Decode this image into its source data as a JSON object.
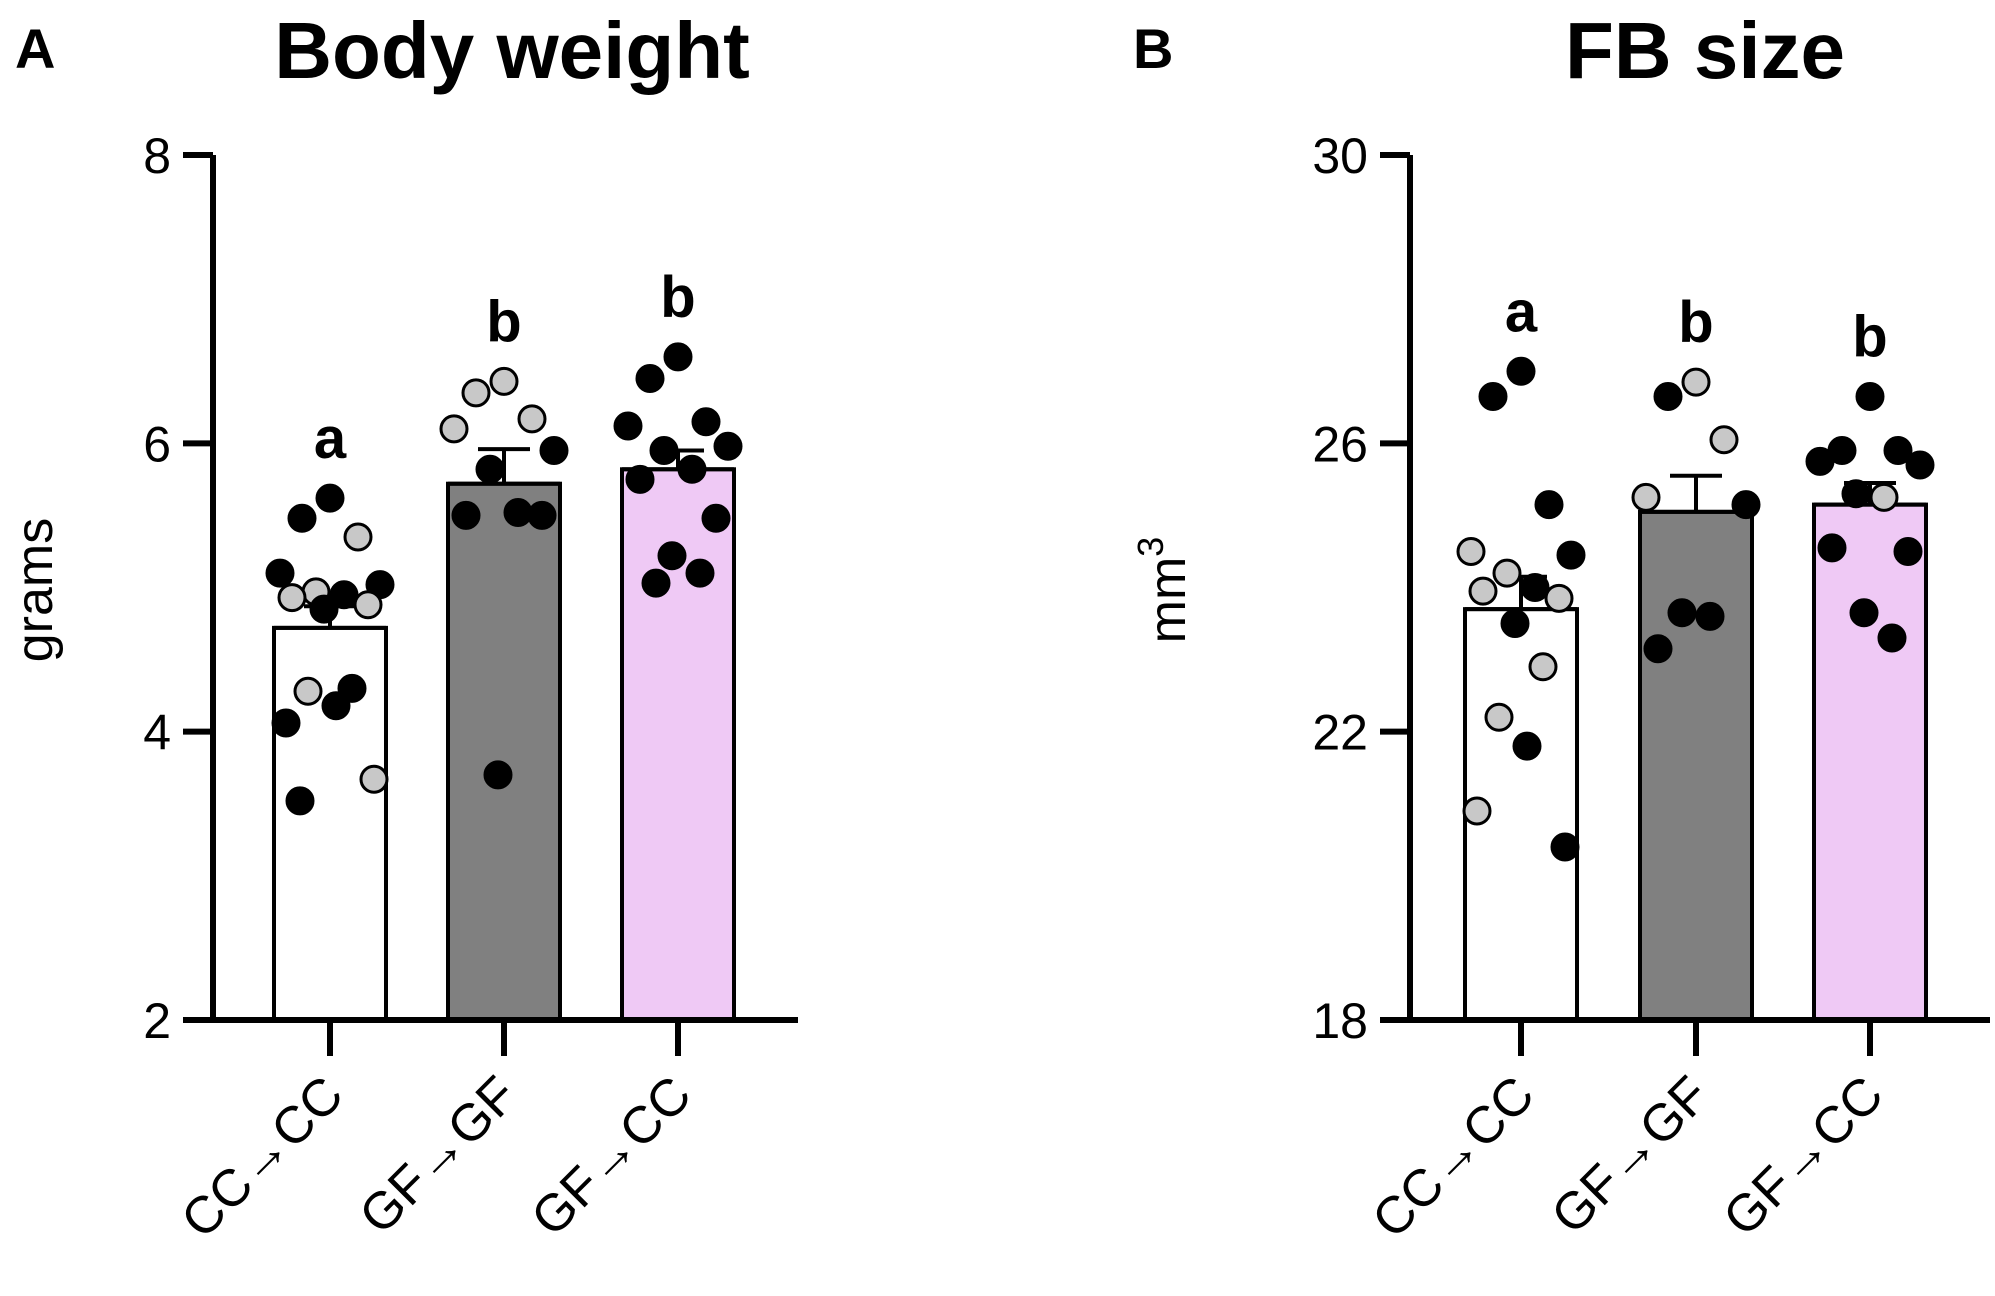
{
  "chart_data": [
    {
      "panel": "A",
      "type": "bar",
      "title": "Body weight",
      "ylabel": "grams",
      "xlabel": "",
      "ylim": [
        2,
        8
      ],
      "yticks": [
        2,
        4,
        6,
        8
      ],
      "categories": [
        "CC→CC",
        "GF→GF",
        "GF→CC"
      ],
      "bar_colors": [
        "#ffffff",
        "#808080",
        "#efc9f5"
      ],
      "means": [
        4.72,
        5.72,
        5.82
      ],
      "sem": [
        0.15,
        0.24,
        0.13
      ],
      "significance": [
        "a",
        "b",
        "b"
      ],
      "points": [
        [
          {
            "v": 5.62,
            "fill": "#000000"
          },
          {
            "v": 5.48,
            "fill": "#000000"
          },
          {
            "v": 5.35,
            "fill": "#c8c8c8"
          },
          {
            "v": 5.1,
            "fill": "#000000"
          },
          {
            "v": 5.02,
            "fill": "#000000"
          },
          {
            "v": 4.97,
            "fill": "#c8c8c8"
          },
          {
            "v": 4.95,
            "fill": "#000000"
          },
          {
            "v": 4.93,
            "fill": "#c8c8c8"
          },
          {
            "v": 4.88,
            "fill": "#c8c8c8"
          },
          {
            "v": 4.85,
            "fill": "#000000"
          },
          {
            "v": 4.3,
            "fill": "#000000"
          },
          {
            "v": 4.28,
            "fill": "#c8c8c8"
          },
          {
            "v": 4.18,
            "fill": "#000000"
          },
          {
            "v": 4.06,
            "fill": "#000000"
          },
          {
            "v": 3.67,
            "fill": "#c8c8c8"
          },
          {
            "v": 3.52,
            "fill": "#000000"
          }
        ],
        [
          {
            "v": 6.43,
            "fill": "#c8c8c8"
          },
          {
            "v": 6.35,
            "fill": "#c8c8c8"
          },
          {
            "v": 6.17,
            "fill": "#c8c8c8"
          },
          {
            "v": 6.1,
            "fill": "#c8c8c8"
          },
          {
            "v": 5.95,
            "fill": "#000000"
          },
          {
            "v": 5.82,
            "fill": "#000000"
          },
          {
            "v": 5.52,
            "fill": "#000000"
          },
          {
            "v": 5.5,
            "fill": "#000000"
          },
          {
            "v": 5.5,
            "fill": "#000000"
          },
          {
            "v": 3.7,
            "fill": "#000000"
          }
        ],
        [
          {
            "v": 6.6,
            "fill": "#000000"
          },
          {
            "v": 6.45,
            "fill": "#000000"
          },
          {
            "v": 6.15,
            "fill": "#000000"
          },
          {
            "v": 6.12,
            "fill": "#000000"
          },
          {
            "v": 5.98,
            "fill": "#000000"
          },
          {
            "v": 5.95,
            "fill": "#000000"
          },
          {
            "v": 5.82,
            "fill": "#000000"
          },
          {
            "v": 5.75,
            "fill": "#000000"
          },
          {
            "v": 5.48,
            "fill": "#000000"
          },
          {
            "v": 5.22,
            "fill": "#000000"
          },
          {
            "v": 5.1,
            "fill": "#000000"
          },
          {
            "v": 5.03,
            "fill": "#000000"
          }
        ]
      ]
    },
    {
      "panel": "B",
      "type": "bar",
      "title": "FB size",
      "ylabel": "mm",
      "ylabel_superscript": "3",
      "xlabel": "",
      "ylim": [
        18,
        30
      ],
      "yticks": [
        18,
        22,
        26,
        30
      ],
      "categories": [
        "CC→CC",
        "GF→GF",
        "GF→CC"
      ],
      "bar_colors": [
        "#ffffff",
        "#808080",
        "#efc9f5"
      ],
      "means": [
        23.7,
        25.05,
        25.15
      ],
      "sem": [
        0.45,
        0.5,
        0.3
      ],
      "significance": [
        "a",
        "b",
        "b"
      ],
      "points": [
        [
          {
            "v": 27.0,
            "fill": "#000000"
          },
          {
            "v": 26.65,
            "fill": "#000000"
          },
          {
            "v": 25.15,
            "fill": "#000000"
          },
          {
            "v": 24.5,
            "fill": "#c8c8c8"
          },
          {
            "v": 24.45,
            "fill": "#000000"
          },
          {
            "v": 24.2,
            "fill": "#c8c8c8"
          },
          {
            "v": 24.0,
            "fill": "#000000"
          },
          {
            "v": 23.95,
            "fill": "#c8c8c8"
          },
          {
            "v": 23.85,
            "fill": "#c8c8c8"
          },
          {
            "v": 23.5,
            "fill": "#000000"
          },
          {
            "v": 22.9,
            "fill": "#c8c8c8"
          },
          {
            "v": 22.2,
            "fill": "#c8c8c8"
          },
          {
            "v": 21.8,
            "fill": "#000000"
          },
          {
            "v": 20.9,
            "fill": "#c8c8c8"
          },
          {
            "v": 20.4,
            "fill": "#000000"
          }
        ],
        [
          {
            "v": 26.85,
            "fill": "#c8c8c8"
          },
          {
            "v": 26.65,
            "fill": "#000000"
          },
          {
            "v": 26.05,
            "fill": "#c8c8c8"
          },
          {
            "v": 25.25,
            "fill": "#c8c8c8"
          },
          {
            "v": 25.15,
            "fill": "#000000"
          },
          {
            "v": 23.65,
            "fill": "#000000"
          },
          {
            "v": 23.6,
            "fill": "#000000"
          },
          {
            "v": 23.15,
            "fill": "#000000"
          }
        ],
        [
          {
            "v": 26.65,
            "fill": "#000000"
          },
          {
            "v": 25.9,
            "fill": "#000000"
          },
          {
            "v": 25.9,
            "fill": "#000000"
          },
          {
            "v": 25.75,
            "fill": "#000000"
          },
          {
            "v": 25.7,
            "fill": "#000000"
          },
          {
            "v": 25.3,
            "fill": "#000000"
          },
          {
            "v": 25.25,
            "fill": "#c8c8c8"
          },
          {
            "v": 24.55,
            "fill": "#000000"
          },
          {
            "v": 24.5,
            "fill": "#000000"
          },
          {
            "v": 23.65,
            "fill": "#000000"
          },
          {
            "v": 23.3,
            "fill": "#000000"
          }
        ]
      ]
    }
  ]
}
